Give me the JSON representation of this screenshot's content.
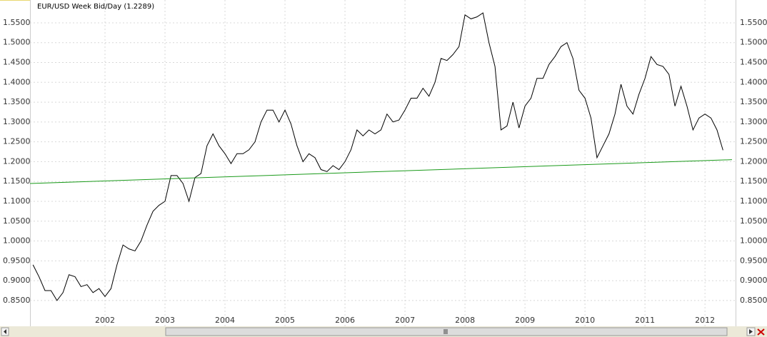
{
  "chart_data": {
    "type": "line",
    "title": "EUR/USD Week Bid/Day (1.2289)",
    "xlim": [
      2000.75,
      2012.51
    ],
    "xticks": [
      2002,
      2003,
      2004,
      2005,
      2006,
      2007,
      2008,
      2009,
      2010,
      2011,
      2012
    ],
    "ylim": [
      0.785,
      1.6075
    ],
    "yticks": [
      {
        "value": 0.85,
        "label": "0.8500"
      },
      {
        "value": 0.9,
        "label": "0.9000"
      },
      {
        "value": 0.95,
        "label": "0.9500"
      },
      {
        "value": 1.0,
        "label": "1.0000"
      },
      {
        "value": 1.05,
        "label": "1.0500"
      },
      {
        "value": 1.1,
        "label": "1.1000"
      },
      {
        "value": 1.15,
        "label": "1.1500"
      },
      {
        "value": 1.2,
        "label": "1.2000"
      },
      {
        "value": 1.25,
        "label": "1.2500"
      },
      {
        "value": 1.3,
        "label": "1.3000"
      },
      {
        "value": 1.35,
        "label": "1.3500"
      },
      {
        "value": 1.4,
        "label": "1.4000"
      },
      {
        "value": 1.45,
        "label": "1.4500"
      },
      {
        "value": 1.5,
        "label": "1.5000"
      },
      {
        "value": 1.55,
        "label": "1.5500"
      }
    ],
    "grid": true,
    "series": [
      {
        "color": "#000000",
        "x": [
          2000.8,
          2000.9,
          2001.0,
          2001.1,
          2001.2,
          2001.3,
          2001.4,
          2001.5,
          2001.6,
          2001.7,
          2001.8,
          2001.9,
          2002.0,
          2002.1,
          2002.2,
          2002.3,
          2002.4,
          2002.5,
          2002.6,
          2002.7,
          2002.8,
          2002.9,
          2003.0,
          2003.1,
          2003.2,
          2003.3,
          2003.4,
          2003.5,
          2003.6,
          2003.7,
          2003.8,
          2003.9,
          2004.0,
          2004.1,
          2004.2,
          2004.3,
          2004.4,
          2004.5,
          2004.6,
          2004.7,
          2004.8,
          2004.9,
          2005.0,
          2005.1,
          2005.2,
          2005.3,
          2005.4,
          2005.5,
          2005.6,
          2005.7,
          2005.8,
          2005.9,
          2006.0,
          2006.1,
          2006.2,
          2006.3,
          2006.4,
          2006.5,
          2006.6,
          2006.7,
          2006.8,
          2006.9,
          2007.0,
          2007.1,
          2007.2,
          2007.3,
          2007.4,
          2007.5,
          2007.6,
          2007.7,
          2007.8,
          2007.9,
          2008.0,
          2008.1,
          2008.2,
          2008.3,
          2008.4,
          2008.5,
          2008.6,
          2008.7,
          2008.8,
          2008.9,
          2009.0,
          2009.1,
          2009.2,
          2009.3,
          2009.4,
          2009.5,
          2009.6,
          2009.7,
          2009.8,
          2009.9,
          2010.0,
          2010.1,
          2010.2,
          2010.3,
          2010.4,
          2010.5,
          2010.6,
          2010.7,
          2010.8,
          2010.9,
          2011.0,
          2011.1,
          2011.2,
          2011.3,
          2011.4,
          2011.5,
          2011.6,
          2011.7,
          2011.8,
          2011.9,
          2012.0,
          2012.1,
          2012.2,
          2012.3
        ],
        "values": [
          0.94,
          0.91,
          0.875,
          0.875,
          0.85,
          0.87,
          0.915,
          0.91,
          0.885,
          0.89,
          0.87,
          0.88,
          0.86,
          0.88,
          0.94,
          0.99,
          0.98,
          0.975,
          1.0,
          1.04,
          1.075,
          1.09,
          1.1,
          1.165,
          1.165,
          1.145,
          1.1,
          1.16,
          1.17,
          1.24,
          1.27,
          1.24,
          1.22,
          1.195,
          1.22,
          1.22,
          1.23,
          1.25,
          1.3,
          1.33,
          1.33,
          1.3,
          1.33,
          1.295,
          1.24,
          1.2,
          1.22,
          1.21,
          1.18,
          1.175,
          1.19,
          1.18,
          1.2,
          1.23,
          1.28,
          1.265,
          1.28,
          1.27,
          1.28,
          1.32,
          1.3,
          1.305,
          1.33,
          1.36,
          1.36,
          1.385,
          1.365,
          1.4,
          1.46,
          1.455,
          1.47,
          1.49,
          1.57,
          1.56,
          1.565,
          1.575,
          1.5,
          1.44,
          1.28,
          1.29,
          1.35,
          1.285,
          1.34,
          1.36,
          1.41,
          1.41,
          1.445,
          1.465,
          1.49,
          1.5,
          1.46,
          1.38,
          1.36,
          1.31,
          1.21,
          1.24,
          1.27,
          1.32,
          1.395,
          1.34,
          1.32,
          1.37,
          1.41,
          1.465,
          1.445,
          1.44,
          1.42,
          1.34,
          1.39,
          1.34,
          1.28,
          1.31,
          1.32,
          1.31,
          1.28,
          1.2289
        ]
      },
      {
        "color": "#1a9a1a",
        "x": [
          2000.75,
          2012.45
        ],
        "values": [
          1.145,
          1.205
        ]
      }
    ]
  }
}
